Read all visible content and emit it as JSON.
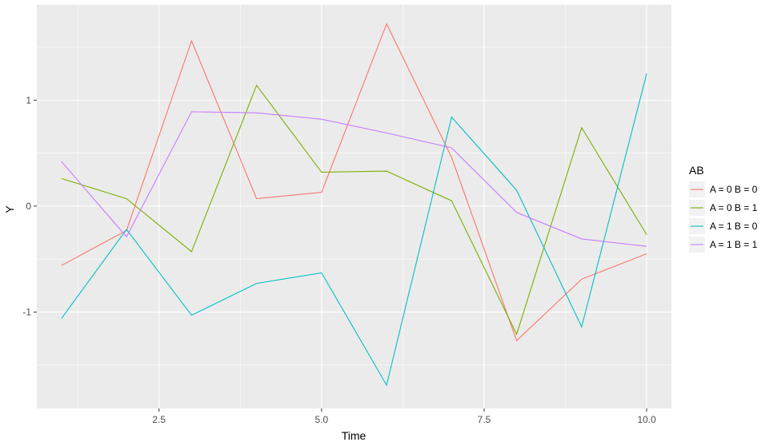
{
  "chart_data": {
    "type": "line",
    "xlabel": "Time",
    "ylabel": "Y",
    "xlim": [
      0.62,
      10.38
    ],
    "ylim": [
      -1.91,
      1.9
    ],
    "x_ticks": [
      2.5,
      5.0,
      7.5,
      10.0
    ],
    "x_tick_labels": [
      "2.5",
      "5.0",
      "7.5",
      "10.0"
    ],
    "y_ticks": [
      -1,
      0,
      1
    ],
    "y_tick_labels": [
      "-1",
      "0",
      "1"
    ],
    "grid": true,
    "legend_position": "right",
    "legend": {
      "title": "AB",
      "entries": [
        "A = 0 B = 0",
        "A = 0 B = 1",
        "A = 1 B = 0",
        "A = 1 B = 1"
      ]
    },
    "x": [
      1,
      2,
      3,
      4,
      5,
      6,
      7,
      8,
      9,
      10
    ],
    "series": [
      {
        "name": "A = 0 B = 0",
        "color": "#F8766D",
        "values": [
          -0.56,
          -0.23,
          1.56,
          0.07,
          0.13,
          1.72,
          0.46,
          -1.27,
          -0.69,
          -0.45
        ]
      },
      {
        "name": "A = 0 B = 1",
        "color": "#7CAE00",
        "values": [
          0.26,
          0.07,
          -0.43,
          1.14,
          0.32,
          0.33,
          0.05,
          -1.21,
          0.74,
          -0.27
        ]
      },
      {
        "name": "A = 1 B = 0",
        "color": "#00BFC4",
        "values": [
          -1.06,
          -0.22,
          -1.03,
          -0.73,
          -0.63,
          -1.69,
          0.84,
          0.15,
          -1.14,
          1.25
        ]
      },
      {
        "name": "A = 1 B = 1",
        "color": "#C77CFF",
        "values": [
          0.42,
          -0.29,
          0.89,
          0.88,
          0.82,
          0.69,
          0.55,
          -0.06,
          -0.31,
          -0.38
        ]
      }
    ]
  }
}
